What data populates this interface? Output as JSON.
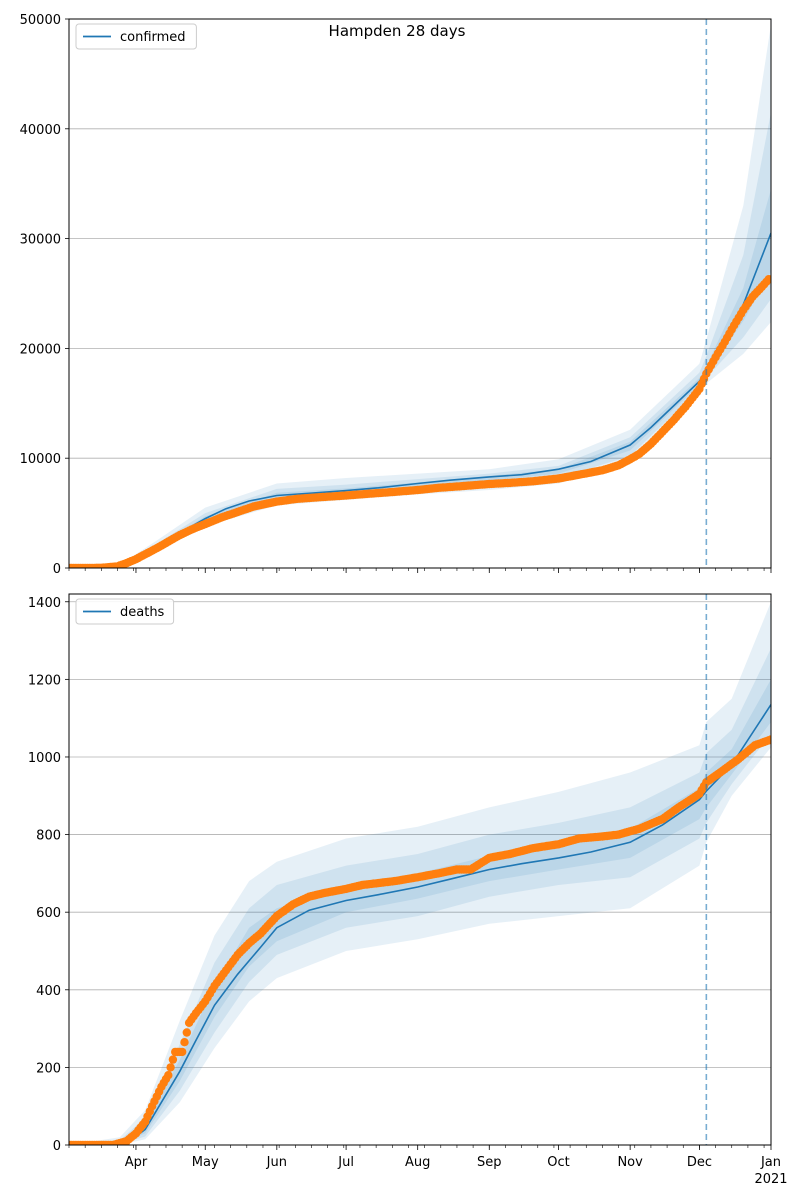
{
  "title": "Hampden 28 days",
  "colors": {
    "band": "#1f77b4",
    "line": "#1f77b4",
    "observed": "#ff7f0e",
    "vline": "#1f77b4",
    "grid": "#b0b0b0"
  },
  "x_axis": {
    "ticks": [
      {
        "date": "2020-04-01",
        "label": "Apr"
      },
      {
        "date": "2020-05-01",
        "label": "May"
      },
      {
        "date": "2020-06-01",
        "label": "Jun"
      },
      {
        "date": "2020-07-01",
        "label": "Jul"
      },
      {
        "date": "2020-08-01",
        "label": "Aug"
      },
      {
        "date": "2020-09-01",
        "label": "Sep"
      },
      {
        "date": "2020-10-01",
        "label": "Oct"
      },
      {
        "date": "2020-11-01",
        "label": "Nov"
      },
      {
        "date": "2020-12-01",
        "label": "Dec"
      },
      {
        "date": "2021-01-01",
        "label": "Jan",
        "sublabel": "2021"
      }
    ],
    "range": [
      "2020-03-03",
      "2021-01-01"
    ]
  },
  "vline_date": "2020-12-04",
  "chart_data": [
    {
      "type": "line",
      "legend": "confirmed",
      "legend_position": "upper-left",
      "ylim": [
        0,
        50000
      ],
      "yticks": [
        0,
        10000,
        20000,
        30000,
        40000,
        50000
      ],
      "grid": "horizontal",
      "median": {
        "x": [
          "2020-03-03",
          "2020-03-15",
          "2020-03-25",
          "2020-04-01",
          "2020-04-10",
          "2020-04-20",
          "2020-05-01",
          "2020-05-10",
          "2020-05-20",
          "2020-06-01",
          "2020-06-15",
          "2020-07-01",
          "2020-07-15",
          "2020-08-01",
          "2020-08-15",
          "2020-09-01",
          "2020-09-15",
          "2020-10-01",
          "2020-10-15",
          "2020-11-01",
          "2020-11-10",
          "2020-11-20",
          "2020-12-01",
          "2020-12-04",
          "2020-12-10",
          "2020-12-20",
          "2021-01-01"
        ],
        "y": [
          0,
          0,
          200,
          900,
          1900,
          3200,
          4500,
          5400,
          6100,
          6600,
          6800,
          7050,
          7300,
          7700,
          8000,
          8300,
          8500,
          9000,
          9700,
          11200,
          12800,
          14800,
          17000,
          17900,
          19500,
          24000,
          30500
        ]
      },
      "bands": [
        {
          "level": "outer",
          "x": [
            "2020-03-03",
            "2020-03-25",
            "2020-04-10",
            "2020-05-01",
            "2020-06-01",
            "2020-07-01",
            "2020-08-01",
            "2020-09-01",
            "2020-10-01",
            "2020-11-01",
            "2020-12-01",
            "2020-12-04",
            "2020-12-20",
            "2021-01-01"
          ],
          "lower": [
            0,
            100,
            1500,
            3800,
            5700,
            6200,
            6700,
            7100,
            7700,
            9600,
            15800,
            16800,
            19500,
            22400
          ],
          "upper": [
            0,
            300,
            2500,
            5500,
            7700,
            8200,
            8600,
            9000,
            9900,
            12600,
            18600,
            20800,
            33000,
            49500
          ]
        },
        {
          "level": "middle",
          "x": [
            "2020-03-03",
            "2020-03-25",
            "2020-04-10",
            "2020-05-01",
            "2020-06-01",
            "2020-07-01",
            "2020-08-01",
            "2020-09-01",
            "2020-10-01",
            "2020-11-01",
            "2020-12-01",
            "2020-12-04",
            "2020-12-20",
            "2021-01-01"
          ],
          "lower": [
            0,
            150,
            1700,
            4100,
            6100,
            6600,
            7100,
            7600,
            8200,
            10200,
            16300,
            17300,
            21000,
            24500
          ],
          "upper": [
            0,
            250,
            2200,
            5000,
            7200,
            7600,
            8100,
            8600,
            9300,
            11900,
            17800,
            19300,
            28500,
            41500
          ]
        },
        {
          "level": "inner",
          "x": [
            "2020-03-03",
            "2020-03-25",
            "2020-04-10",
            "2020-05-01",
            "2020-06-01",
            "2020-07-01",
            "2020-08-01",
            "2020-09-01",
            "2020-10-01",
            "2020-11-01",
            "2020-12-01",
            "2020-12-04",
            "2020-12-20",
            "2021-01-01"
          ],
          "lower": [
            0,
            180,
            1800,
            4300,
            6400,
            6850,
            7400,
            7950,
            8600,
            10700,
            16700,
            17600,
            22500,
            27000
          ],
          "upper": [
            0,
            220,
            2000,
            4700,
            6850,
            7250,
            7800,
            8400,
            9000,
            11500,
            17300,
            18400,
            25500,
            34500
          ]
        }
      ],
      "observed": {
        "x": [
          "2020-03-03",
          "2020-03-10",
          "2020-03-17",
          "2020-03-24",
          "2020-03-28",
          "2020-04-01",
          "2020-04-05",
          "2020-04-10",
          "2020-04-15",
          "2020-04-20",
          "2020-04-25",
          "2020-05-01",
          "2020-05-08",
          "2020-05-15",
          "2020-05-22",
          "2020-06-01",
          "2020-06-10",
          "2020-06-20",
          "2020-07-01",
          "2020-07-10",
          "2020-07-20",
          "2020-08-01",
          "2020-08-10",
          "2020-08-20",
          "2020-09-01",
          "2020-09-10",
          "2020-09-20",
          "2020-10-01",
          "2020-10-10",
          "2020-10-20",
          "2020-10-27",
          "2020-11-01",
          "2020-11-05",
          "2020-11-10",
          "2020-11-15",
          "2020-11-20",
          "2020-11-25",
          "2020-12-01",
          "2020-12-04",
          "2020-12-08",
          "2020-12-12",
          "2020-12-16",
          "2020-12-20",
          "2020-12-24",
          "2020-12-28",
          "2020-12-31"
        ],
        "y": [
          0,
          0,
          20,
          150,
          450,
          800,
          1250,
          1800,
          2400,
          3000,
          3500,
          4000,
          4600,
          5100,
          5600,
          6050,
          6300,
          6450,
          6600,
          6750,
          6900,
          7100,
          7300,
          7450,
          7650,
          7750,
          7900,
          8150,
          8500,
          8900,
          9350,
          9900,
          10400,
          11300,
          12400,
          13500,
          14700,
          16300,
          17700,
          19200,
          20600,
          22100,
          23500,
          24700,
          25600,
          26300
        ]
      }
    },
    {
      "type": "line",
      "legend": "deaths",
      "legend_position": "upper-left",
      "ylim": [
        0,
        1420
      ],
      "yticks": [
        0,
        200,
        400,
        600,
        800,
        1000,
        1200,
        1400
      ],
      "grid": "horizontal",
      "median": {
        "x": [
          "2020-03-03",
          "2020-03-20",
          "2020-03-28",
          "2020-04-05",
          "2020-04-12",
          "2020-04-20",
          "2020-04-27",
          "2020-05-05",
          "2020-05-15",
          "2020-05-25",
          "2020-06-01",
          "2020-06-15",
          "2020-07-01",
          "2020-07-15",
          "2020-08-01",
          "2020-08-15",
          "2020-09-01",
          "2020-09-15",
          "2020-10-01",
          "2020-10-15",
          "2020-11-01",
          "2020-11-15",
          "2020-12-01",
          "2020-12-04",
          "2020-12-15",
          "2021-01-01"
        ],
        "y": [
          0,
          0,
          5,
          40,
          110,
          190,
          270,
          360,
          440,
          510,
          560,
          605,
          630,
          645,
          665,
          685,
          710,
          725,
          740,
          755,
          780,
          825,
          890,
          912,
          980,
          1135
        ]
      },
      "bands": [
        {
          "level": "outer",
          "x": [
            "2020-03-03",
            "2020-03-25",
            "2020-04-05",
            "2020-04-20",
            "2020-05-05",
            "2020-05-20",
            "2020-06-01",
            "2020-07-01",
            "2020-08-01",
            "2020-09-01",
            "2020-10-01",
            "2020-11-01",
            "2020-12-01",
            "2020-12-04",
            "2020-12-15",
            "2021-01-01"
          ],
          "lower": [
            0,
            0,
            15,
            110,
            250,
            370,
            430,
            500,
            530,
            570,
            590,
            610,
            720,
            780,
            900,
            1025
          ],
          "upper": [
            0,
            20,
            90,
            320,
            540,
            680,
            730,
            790,
            820,
            870,
            910,
            960,
            1030,
            1090,
            1150,
            1400
          ]
        },
        {
          "level": "middle",
          "x": [
            "2020-03-03",
            "2020-03-25",
            "2020-04-05",
            "2020-04-20",
            "2020-05-05",
            "2020-05-20",
            "2020-06-01",
            "2020-07-01",
            "2020-08-01",
            "2020-09-01",
            "2020-10-01",
            "2020-11-01",
            "2020-12-01",
            "2020-12-04",
            "2020-12-15",
            "2021-01-01"
          ],
          "lower": [
            0,
            2,
            22,
            140,
            290,
            420,
            490,
            560,
            590,
            640,
            670,
            690,
            790,
            830,
            930,
            1060
          ],
          "upper": [
            0,
            12,
            70,
            260,
            470,
            610,
            670,
            720,
            750,
            800,
            830,
            870,
            960,
            1010,
            1070,
            1280
          ]
        },
        {
          "level": "inner",
          "x": [
            "2020-03-03",
            "2020-03-25",
            "2020-04-05",
            "2020-04-20",
            "2020-05-05",
            "2020-05-20",
            "2020-06-01",
            "2020-07-01",
            "2020-08-01",
            "2020-09-01",
            "2020-10-01",
            "2020-11-01",
            "2020-12-01",
            "2020-12-04",
            "2020-12-15",
            "2021-01-01"
          ],
          "lower": [
            0,
            3,
            30,
            165,
            330,
            460,
            525,
            600,
            635,
            680,
            710,
            740,
            840,
            870,
            955,
            1090
          ],
          "upper": [
            0,
            8,
            55,
            220,
            410,
            560,
            610,
            665,
            700,
            745,
            775,
            815,
            920,
            960,
            1020,
            1200
          ]
        }
      ],
      "observed": {
        "x": [
          "2020-03-03",
          "2020-03-12",
          "2020-03-22",
          "2020-03-28",
          "2020-04-01",
          "2020-04-05",
          "2020-04-08",
          "2020-04-12",
          "2020-04-15",
          "2020-04-18",
          "2020-04-21",
          "2020-04-24",
          "2020-04-27",
          "2020-05-01",
          "2020-05-05",
          "2020-05-10",
          "2020-05-15",
          "2020-05-20",
          "2020-05-25",
          "2020-06-01",
          "2020-06-08",
          "2020-06-15",
          "2020-06-22",
          "2020-07-01",
          "2020-07-08",
          "2020-07-15",
          "2020-07-22",
          "2020-08-01",
          "2020-08-10",
          "2020-08-18",
          "2020-08-24",
          "2020-09-01",
          "2020-09-10",
          "2020-09-20",
          "2020-10-01",
          "2020-10-10",
          "2020-10-20",
          "2020-10-27",
          "2020-11-05",
          "2020-11-15",
          "2020-11-22",
          "2020-12-01",
          "2020-12-04",
          "2020-12-10",
          "2020-12-18",
          "2020-12-25",
          "2021-01-01"
        ],
        "y": [
          0,
          0,
          0,
          10,
          30,
          60,
          100,
          150,
          180,
          240,
          240,
          315,
          340,
          370,
          410,
          450,
          490,
          520,
          545,
          590,
          620,
          640,
          650,
          660,
          670,
          675,
          680,
          690,
          700,
          710,
          710,
          740,
          750,
          765,
          775,
          790,
          795,
          800,
          815,
          840,
          870,
          905,
          935,
          960,
          995,
          1030,
          1045
        ]
      }
    }
  ]
}
